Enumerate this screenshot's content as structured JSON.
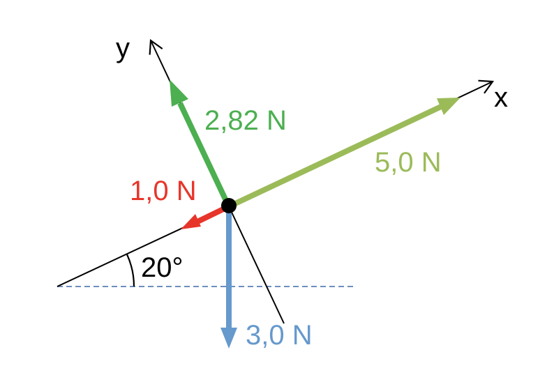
{
  "axes": {
    "x_label": "x",
    "y_label": "y"
  },
  "forces": [
    {
      "id": "green",
      "label": "2,82 N",
      "magnitude": 2.82,
      "unit": "N",
      "color": "#4CAF50"
    },
    {
      "id": "olive",
      "label": "5,0 N",
      "magnitude": 5.0,
      "unit": "N",
      "color": "#9BBB59"
    },
    {
      "id": "red",
      "label": "1,0 N",
      "magnitude": 1.0,
      "unit": "N",
      "color": "#E8352A"
    },
    {
      "id": "blue",
      "label": "3,0 N",
      "magnitude": 3.0,
      "unit": "N",
      "color": "#6699CC"
    }
  ],
  "angle": {
    "label": "20°",
    "degrees": 20
  },
  "colors": {
    "axis": "#000000",
    "reference_line": "#6C8EBF",
    "point": "#000000"
  }
}
